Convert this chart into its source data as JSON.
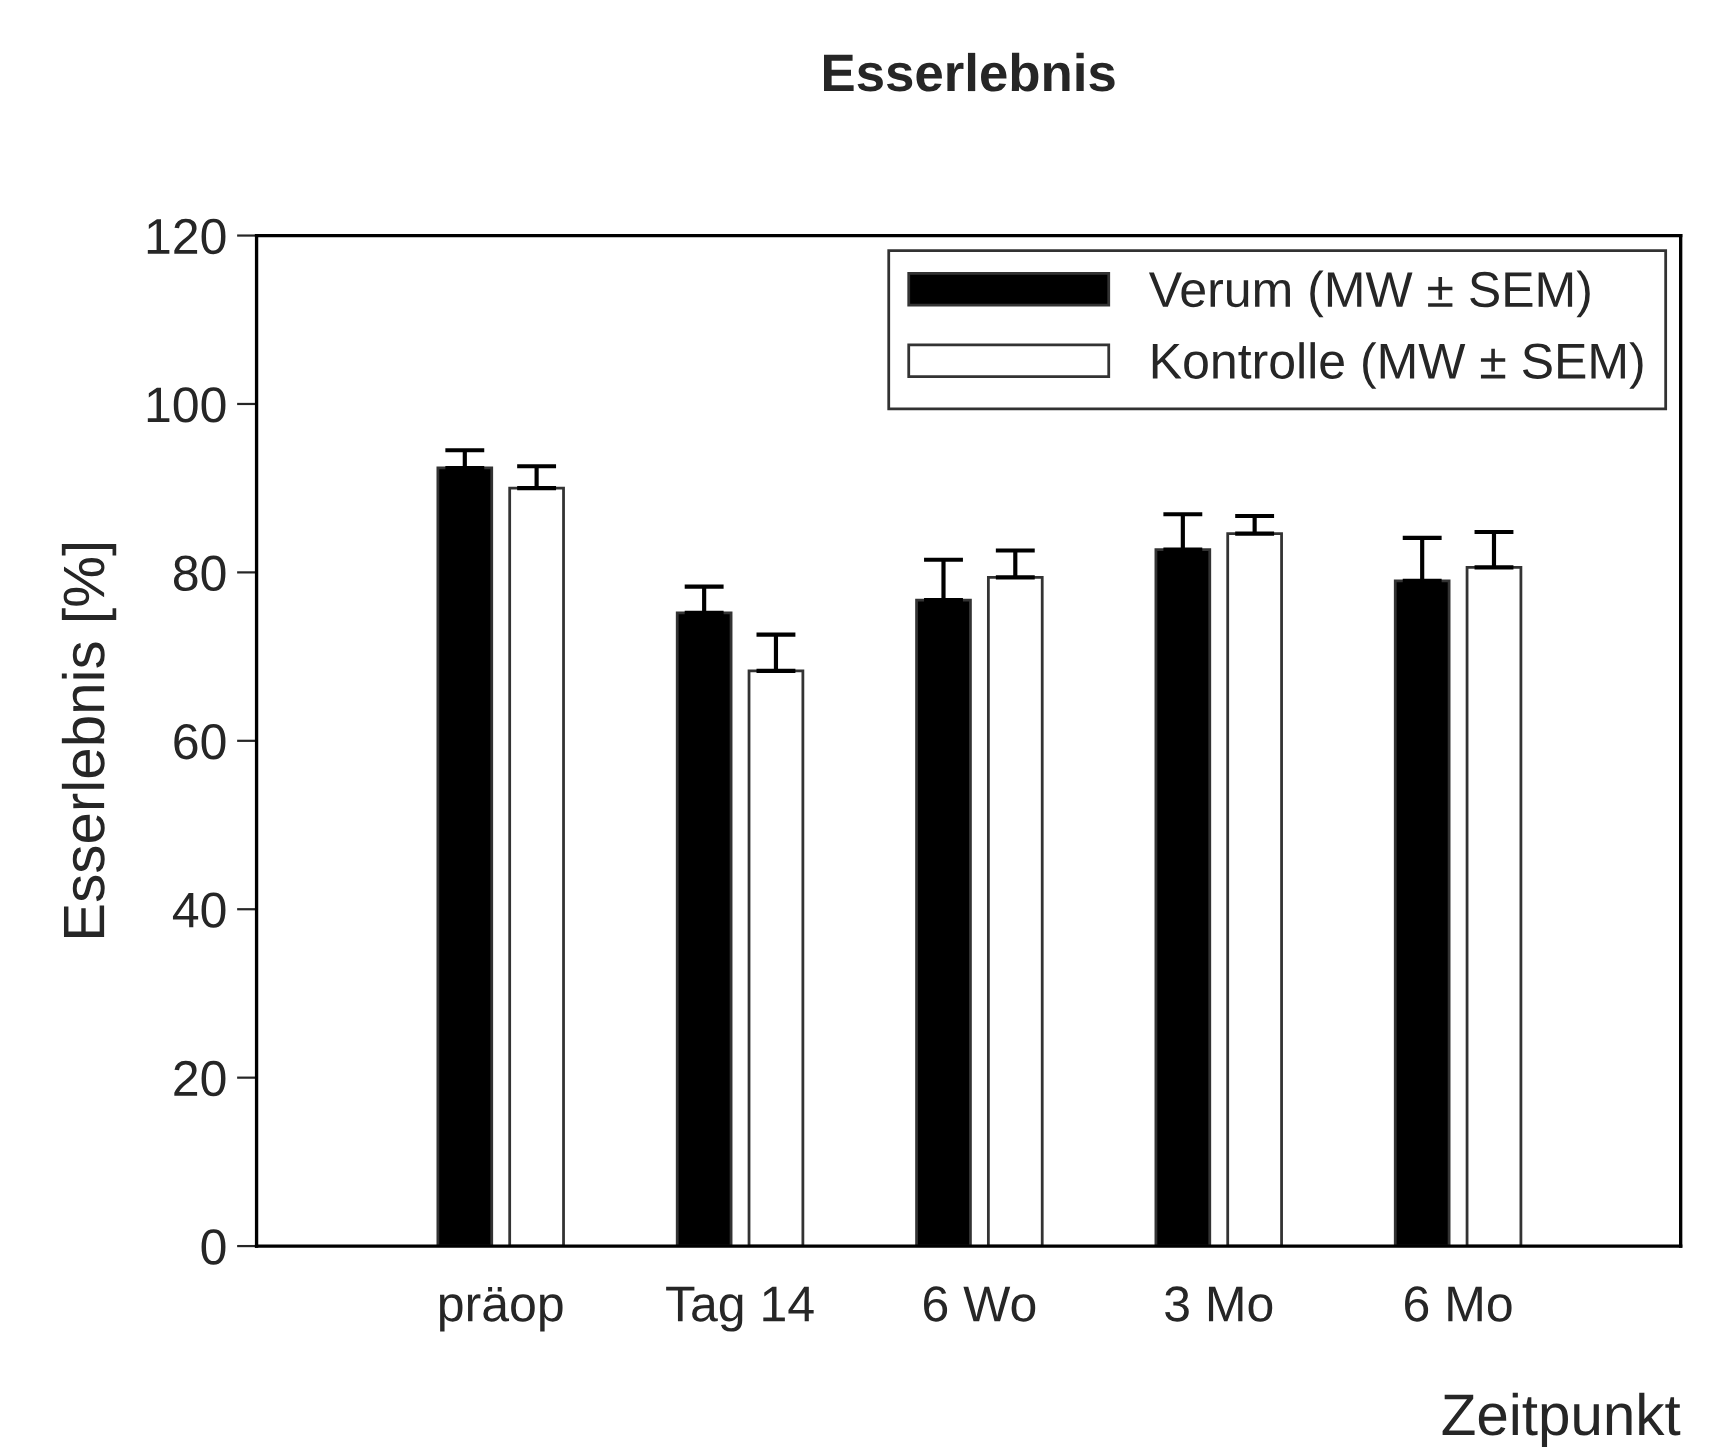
{
  "chart_data": {
    "type": "bar",
    "title": "Esserlebnis",
    "xlabel": "Zeitpunkt",
    "ylabel": "Esserlebnis [%]",
    "categories": [
      "präop",
      "Tag 14",
      "6 Wo",
      "3 Mo",
      "6 Mo"
    ],
    "series": [
      {
        "name": "Verum (MW ± SEM)",
        "color": "#000000",
        "values": [
          92.4,
          75.2,
          76.7,
          82.7,
          79.0
        ],
        "errors": [
          [
            92.4,
            94.5
          ],
          [
            75.2,
            78.3
          ],
          [
            76.7,
            81.5
          ],
          [
            82.7,
            86.9
          ],
          [
            79.0,
            84.1
          ]
        ]
      },
      {
        "name": "Kontrolle (MW ± SEM)",
        "color": "#ffffff",
        "values": [
          90.0,
          68.3,
          79.4,
          84.6,
          80.6
        ],
        "errors": [
          [
            90.0,
            92.6
          ],
          [
            68.3,
            72.6
          ],
          [
            79.4,
            82.6
          ],
          [
            84.6,
            86.7
          ],
          [
            80.6,
            84.8
          ]
        ]
      }
    ],
    "ylim": [
      0,
      120
    ],
    "yticks": [
      0,
      20,
      40,
      60,
      80,
      100,
      120
    ],
    "grid": false,
    "legend": "top right"
  }
}
